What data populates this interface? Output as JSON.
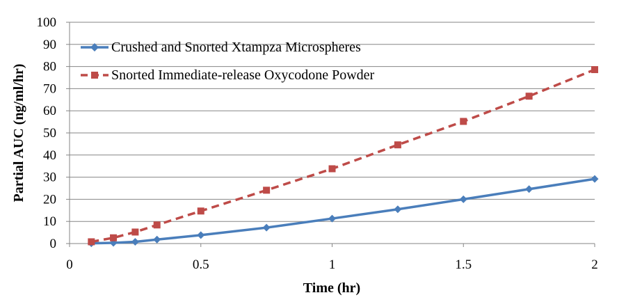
{
  "chart_data": {
    "type": "line",
    "title": "",
    "xlabel": "Time (hr)",
    "ylabel": "Partial AUC (ng/ml/hr)",
    "xlim": [
      0,
      2
    ],
    "ylim": [
      0,
      100
    ],
    "xticks": [
      0,
      0.5,
      1,
      1.5,
      2
    ],
    "xtick_labels": [
      "0",
      "0.5",
      "1",
      "1.5",
      "2"
    ],
    "yticks": [
      0,
      10,
      20,
      30,
      40,
      50,
      60,
      70,
      80,
      90,
      100
    ],
    "ytick_labels": [
      "0",
      "10",
      "20",
      "30",
      "40",
      "50",
      "60",
      "70",
      "80",
      "90",
      "100"
    ],
    "grid": "horizontal",
    "legend_position": "top-left",
    "series": [
      {
        "name": "Crushed and Snorted Xtampza Microspheres",
        "color": "#4a7ebb",
        "line_style": "solid",
        "marker": "diamond",
        "x": [
          0.083,
          0.167,
          0.25,
          0.333,
          0.5,
          0.75,
          1,
          1.25,
          1.5,
          1.75,
          2
        ],
        "y": [
          0.1,
          0.3,
          0.8,
          1.8,
          3.8,
          7.2,
          11.3,
          15.5,
          20.0,
          24.6,
          29.2
        ]
      },
      {
        "name": "Snorted Immediate-release Oxycodone Powder",
        "color": "#be4b48",
        "line_style": "dashed",
        "marker": "square",
        "x": [
          0.083,
          0.167,
          0.25,
          0.333,
          0.5,
          0.75,
          1,
          1.25,
          1.5,
          1.75,
          2
        ],
        "y": [
          0.8,
          2.6,
          5.2,
          8.4,
          14.7,
          24.1,
          33.8,
          44.6,
          55.2,
          66.6,
          78.6
        ]
      }
    ]
  }
}
